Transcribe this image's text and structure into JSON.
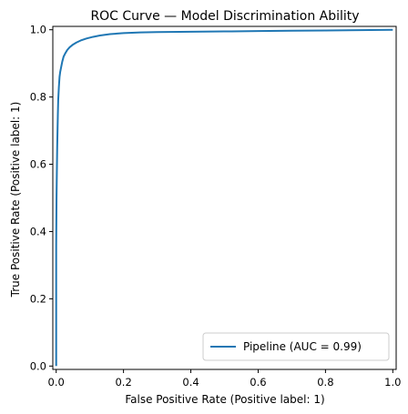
{
  "chart_data": {
    "type": "line",
    "title": "ROC Curve — Model Discrimination Ability",
    "xlabel": "False Positive Rate (Positive label: 1)",
    "ylabel": "True Positive Rate (Positive label: 1)",
    "xlim": [
      -0.01,
      1.01
    ],
    "ylim": [
      -0.01,
      1.01
    ],
    "xticks": [
      0.0,
      0.2,
      0.4,
      0.6,
      0.8,
      1.0
    ],
    "xtick_labels": [
      "0.0",
      "0.2",
      "0.4",
      "0.6",
      "0.8",
      "1.0"
    ],
    "yticks": [
      0.0,
      0.2,
      0.4,
      0.6,
      0.8,
      1.0
    ],
    "ytick_labels": [
      "0.0",
      "0.2",
      "0.4",
      "0.6",
      "0.8",
      "1.0"
    ],
    "grid": false,
    "legend_position": "lower-right",
    "series": [
      {
        "name": "Pipeline (AUC = 0.99)",
        "color": "#1f77b4",
        "x": [
          0.0,
          0.0,
          0.001,
          0.002,
          0.003,
          0.004,
          0.005,
          0.006,
          0.008,
          0.01,
          0.012,
          0.015,
          0.018,
          0.022,
          0.027,
          0.033,
          0.04,
          0.05,
          0.06,
          0.075,
          0.09,
          0.11,
          0.13,
          0.16,
          0.2,
          0.25,
          0.3,
          0.4,
          0.5,
          0.6,
          0.7,
          0.8,
          0.9,
          1.0
        ],
        "y": [
          0.0,
          0.36,
          0.5,
          0.58,
          0.65,
          0.7,
          0.75,
          0.79,
          0.83,
          0.86,
          0.875,
          0.89,
          0.905,
          0.92,
          0.93,
          0.94,
          0.948,
          0.956,
          0.962,
          0.969,
          0.974,
          0.979,
          0.983,
          0.987,
          0.99,
          0.992,
          0.993,
          0.994,
          0.995,
          0.996,
          0.997,
          0.998,
          0.999,
          1.0
        ]
      }
    ]
  }
}
